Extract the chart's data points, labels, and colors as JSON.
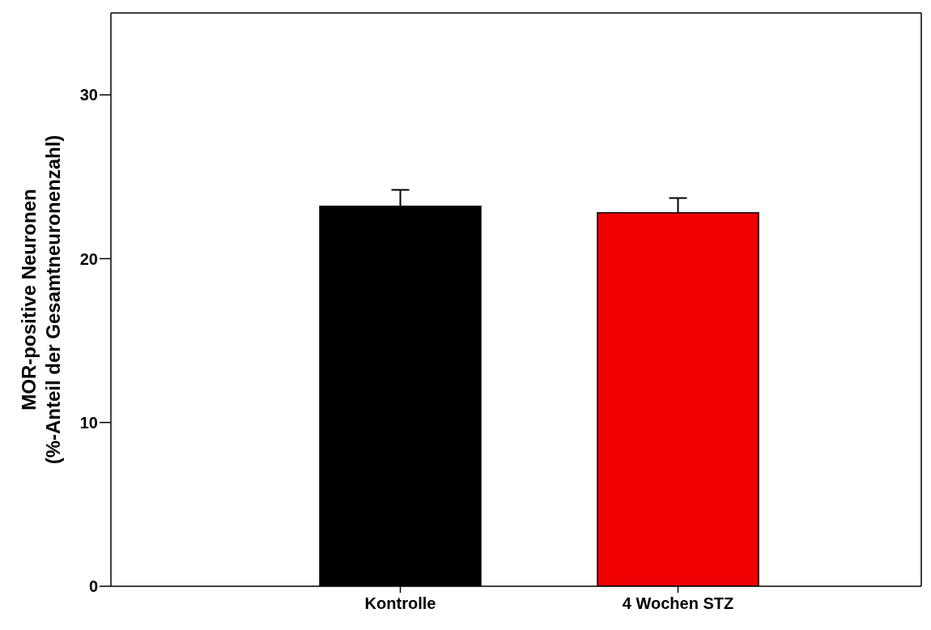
{
  "chart_data": {
    "type": "bar",
    "ylabel": "MOR-positive Neuronen\n(%-Anteil der Gesamtneuronenzahl)",
    "categories": [
      "Kontrolle",
      "4 Wochen STZ"
    ],
    "values": [
      23.2,
      22.8
    ],
    "errors": [
      1.0,
      0.9
    ],
    "colors": [
      "#000000",
      "#f00000"
    ],
    "ylim": [
      0,
      35
    ],
    "yticks": [
      0,
      10,
      20,
      30
    ],
    "grid": false,
    "legend": false
  }
}
